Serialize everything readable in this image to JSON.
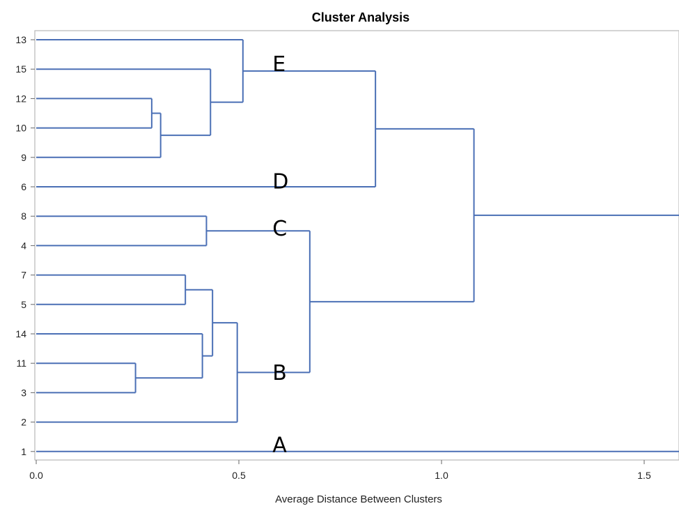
{
  "chart_data": {
    "type": "dendrogram",
    "title": "Cluster Analysis",
    "xlabel": "Average Distance Between Clusters",
    "xlim": [
      0,
      1.58
    ],
    "xticks": [
      "0.0",
      "0.5",
      "1.0",
      "1.5"
    ],
    "xtick_values": [
      0,
      0.5,
      1.0,
      1.5
    ],
    "leaves": [
      "13",
      "15",
      "12",
      "10",
      "9",
      "6",
      "8",
      "4",
      "7",
      "5",
      "14",
      "11",
      "3",
      "2",
      "1"
    ],
    "merges": [
      {
        "id": "m1",
        "children": [
          "12",
          "10"
        ],
        "height": 0.285
      },
      {
        "id": "m2",
        "children": [
          "m1",
          "9"
        ],
        "height": 0.307
      },
      {
        "id": "m3",
        "children": [
          "15",
          "m2"
        ],
        "height": 0.43
      },
      {
        "id": "m4",
        "children": [
          "13",
          "m3"
        ],
        "height": 0.51
      },
      {
        "id": "m5",
        "children": [
          "m4",
          "6"
        ],
        "height": 0.837
      },
      {
        "id": "m6",
        "children": [
          "8",
          "4"
        ],
        "height": 0.42
      },
      {
        "id": "m7",
        "children": [
          "7",
          "5"
        ],
        "height": 0.368
      },
      {
        "id": "m8",
        "children": [
          "11",
          "3"
        ],
        "height": 0.245
      },
      {
        "id": "m9",
        "children": [
          "14",
          "m8"
        ],
        "height": 0.41
      },
      {
        "id": "m10",
        "children": [
          "m7",
          "m9"
        ],
        "height": 0.435
      },
      {
        "id": "m11",
        "children": [
          "m10",
          "2"
        ],
        "height": 0.496
      },
      {
        "id": "m12",
        "children": [
          "m6",
          "m11"
        ],
        "height": 0.675
      },
      {
        "id": "m13",
        "children": [
          "m5",
          "m12"
        ],
        "height": 1.08
      }
    ],
    "root_extends_to": 1.58,
    "leaf1_extends_to": 1.58,
    "annotations": [
      {
        "text": "E",
        "x": 0.6,
        "y_leaf": 13,
        "dy": 0.4
      },
      {
        "text": "D",
        "x": 0.6,
        "y_leaf": 6,
        "dy": -0.6
      },
      {
        "text": "C",
        "x": 0.6,
        "y_leaf": 8,
        "dy": 0.0
      },
      {
        "text": "B",
        "x": 0.6,
        "y_leaf": 14,
        "dy": 0.9
      },
      {
        "text": "A",
        "x": 0.6,
        "y_leaf": 2,
        "dy": 0.35
      }
    ],
    "color": "#4a6fb5",
    "grid": false
  }
}
